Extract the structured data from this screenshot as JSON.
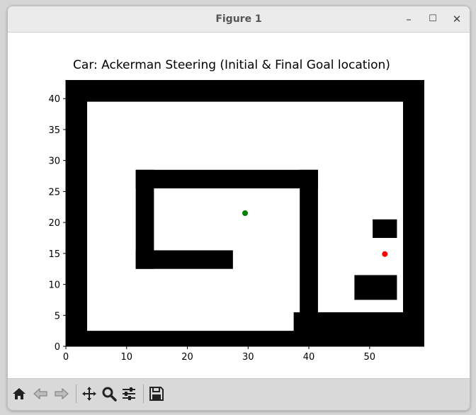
{
  "window": {
    "title": "Figure 1",
    "minimize_label": "–",
    "maximize_label": "☐",
    "close_label": "✕"
  },
  "toolbar": {
    "buttons": [
      {
        "name": "home-button",
        "icon": "home-icon"
      },
      {
        "name": "back-button",
        "icon": "back-arrow-icon"
      },
      {
        "name": "forward-button",
        "icon": "forward-arrow-icon"
      },
      {
        "name": "pan-button",
        "icon": "move-icon"
      },
      {
        "name": "zoom-button",
        "icon": "magnifier-icon"
      },
      {
        "name": "configure-subplots-button",
        "icon": "sliders-icon"
      },
      {
        "name": "save-button",
        "icon": "floppy-icon"
      }
    ]
  },
  "chart_data": {
    "type": "scatter",
    "title": "Car: Ackerman Steering (Initial & Final Goal location)",
    "xlabel": "",
    "ylabel": "",
    "xlim": [
      0,
      59
    ],
    "ylim": [
      0,
      43
    ],
    "x_ticks": [
      0,
      10,
      20,
      30,
      40,
      50
    ],
    "y_ticks": [
      0,
      5,
      10,
      15,
      20,
      25,
      30,
      35,
      40
    ],
    "grid": false,
    "legend": "none",
    "obstacle_color": "#000000",
    "free_space_color": "#ffffff",
    "obstacles": [
      {
        "name": "outer-wall-top",
        "x": [
          0,
          59
        ],
        "y": [
          39.5,
          43
        ]
      },
      {
        "name": "outer-wall-bottom",
        "x": [
          0,
          59
        ],
        "y": [
          0,
          2.5
        ]
      },
      {
        "name": "outer-wall-left",
        "x": [
          0,
          3.5
        ],
        "y": [
          0,
          43
        ]
      },
      {
        "name": "outer-wall-right",
        "x": [
          55.5,
          59
        ],
        "y": [
          0,
          43
        ]
      },
      {
        "name": "inner-wall-top",
        "x": [
          11.5,
          41.5
        ],
        "y": [
          25.5,
          28.5
        ]
      },
      {
        "name": "inner-wall-left",
        "x": [
          11.5,
          14.5
        ],
        "y": [
          12.5,
          28.5
        ]
      },
      {
        "name": "inner-wall-bottom",
        "x": [
          11.5,
          27.5
        ],
        "y": [
          12.5,
          15.5
        ]
      },
      {
        "name": "inner-wall-right",
        "x": [
          38.5,
          41.5
        ],
        "y": [
          2.5,
          28.5
        ]
      },
      {
        "name": "bottom-right-block",
        "x": [
          37.5,
          59
        ],
        "y": [
          0,
          5.5
        ]
      },
      {
        "name": "small-block-upper",
        "x": [
          50.5,
          54.5
        ],
        "y": [
          17.5,
          20.5
        ]
      },
      {
        "name": "small-block-lower",
        "x": [
          47.5,
          54.5
        ],
        "y": [
          7.5,
          11.5
        ]
      }
    ],
    "series": [
      {
        "name": "",
        "x": [
          29.5
        ],
        "y": [
          21.5
        ],
        "color": "#008000"
      },
      {
        "name": "",
        "x": [
          52.5
        ],
        "y": [
          14.9
        ],
        "color": "#ff0000"
      }
    ]
  }
}
